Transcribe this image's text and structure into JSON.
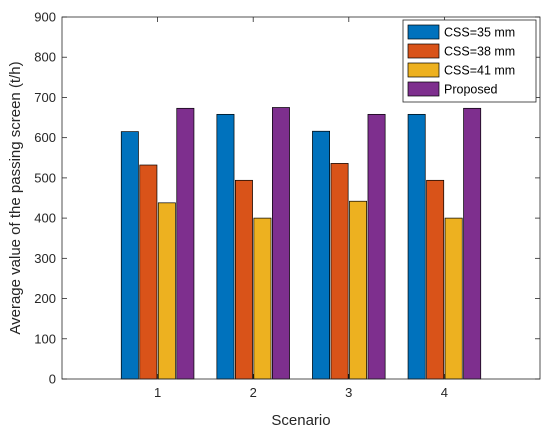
{
  "chart_data": {
    "type": "bar",
    "title": "",
    "xlabel": "Scenario",
    "ylabel": "Average value of the passing screen (t/h)",
    "categories": [
      "1",
      "2",
      "3",
      "4"
    ],
    "ylim": [
      0,
      900
    ],
    "yticks": [
      0,
      100,
      200,
      300,
      400,
      500,
      600,
      700,
      800,
      900
    ],
    "xlim": [
      0,
      5
    ],
    "grid": false,
    "legend_position": "top-right",
    "series": [
      {
        "name": "CSS=35 mm",
        "color": "#0072BD",
        "values": [
          615,
          658,
          616,
          658
        ]
      },
      {
        "name": "CSS=38 mm",
        "color": "#D95319",
        "values": [
          532,
          494,
          536,
          494
        ]
      },
      {
        "name": "CSS=41 mm",
        "color": "#EDB120",
        "values": [
          438,
          400,
          442,
          400
        ]
      },
      {
        "name": "Proposed",
        "color": "#7E2F8E",
        "values": [
          673,
          675,
          658,
          673
        ]
      }
    ]
  }
}
